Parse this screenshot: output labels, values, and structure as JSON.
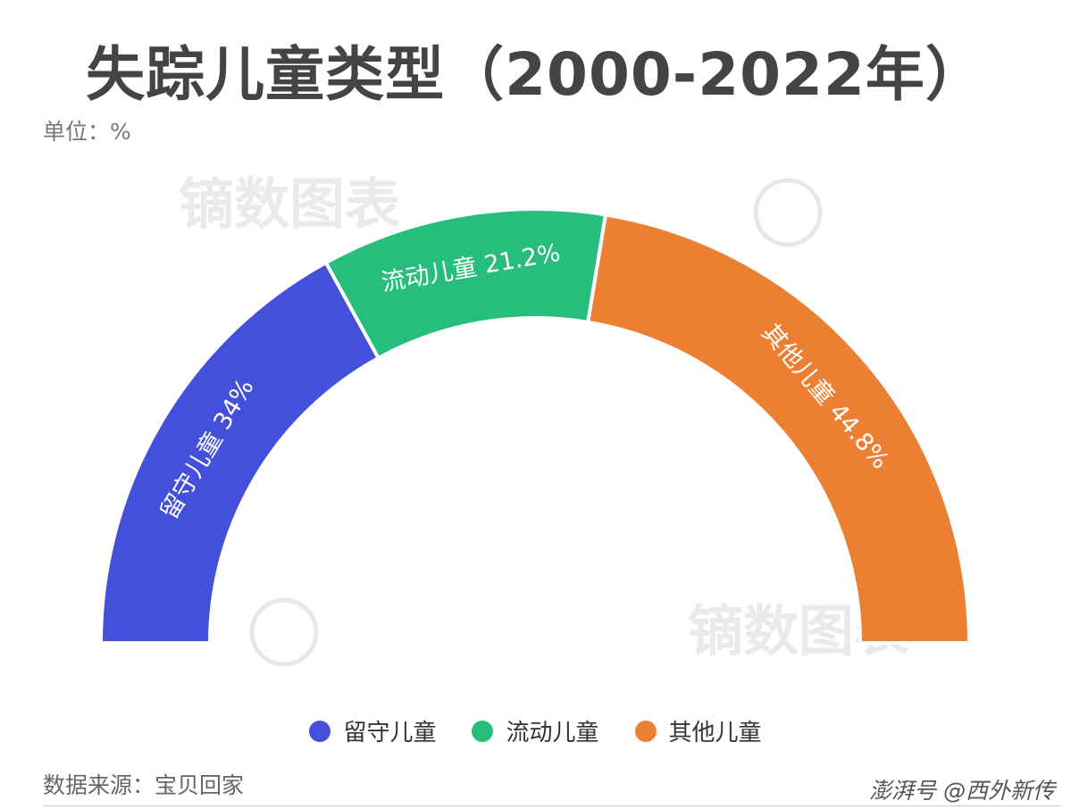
{
  "header": {
    "title": "失踪儿童类型（2000-2022年）",
    "unit": "单位：%"
  },
  "footer": {
    "source": "数据来源：宝贝回家",
    "credit": "澎湃号 @西外新传"
  },
  "watermark": {
    "text": "镝数图表",
    "symbol": "©"
  },
  "chart_data": {
    "type": "pie",
    "variant": "half-donut",
    "title": "失踪儿童类型（2000-2022年）",
    "unit": "%",
    "legend_position": "bottom",
    "categories": [
      "留守儿童",
      "流动儿童",
      "其他儿童"
    ],
    "values": [
      34,
      21.2,
      44.8
    ],
    "labels": [
      "留守儿童  34%",
      "流动儿童  21.2%",
      "其他儿童  44.8%"
    ],
    "colors": [
      "#4250DB",
      "#27BE7D",
      "#EC7F32"
    ]
  }
}
